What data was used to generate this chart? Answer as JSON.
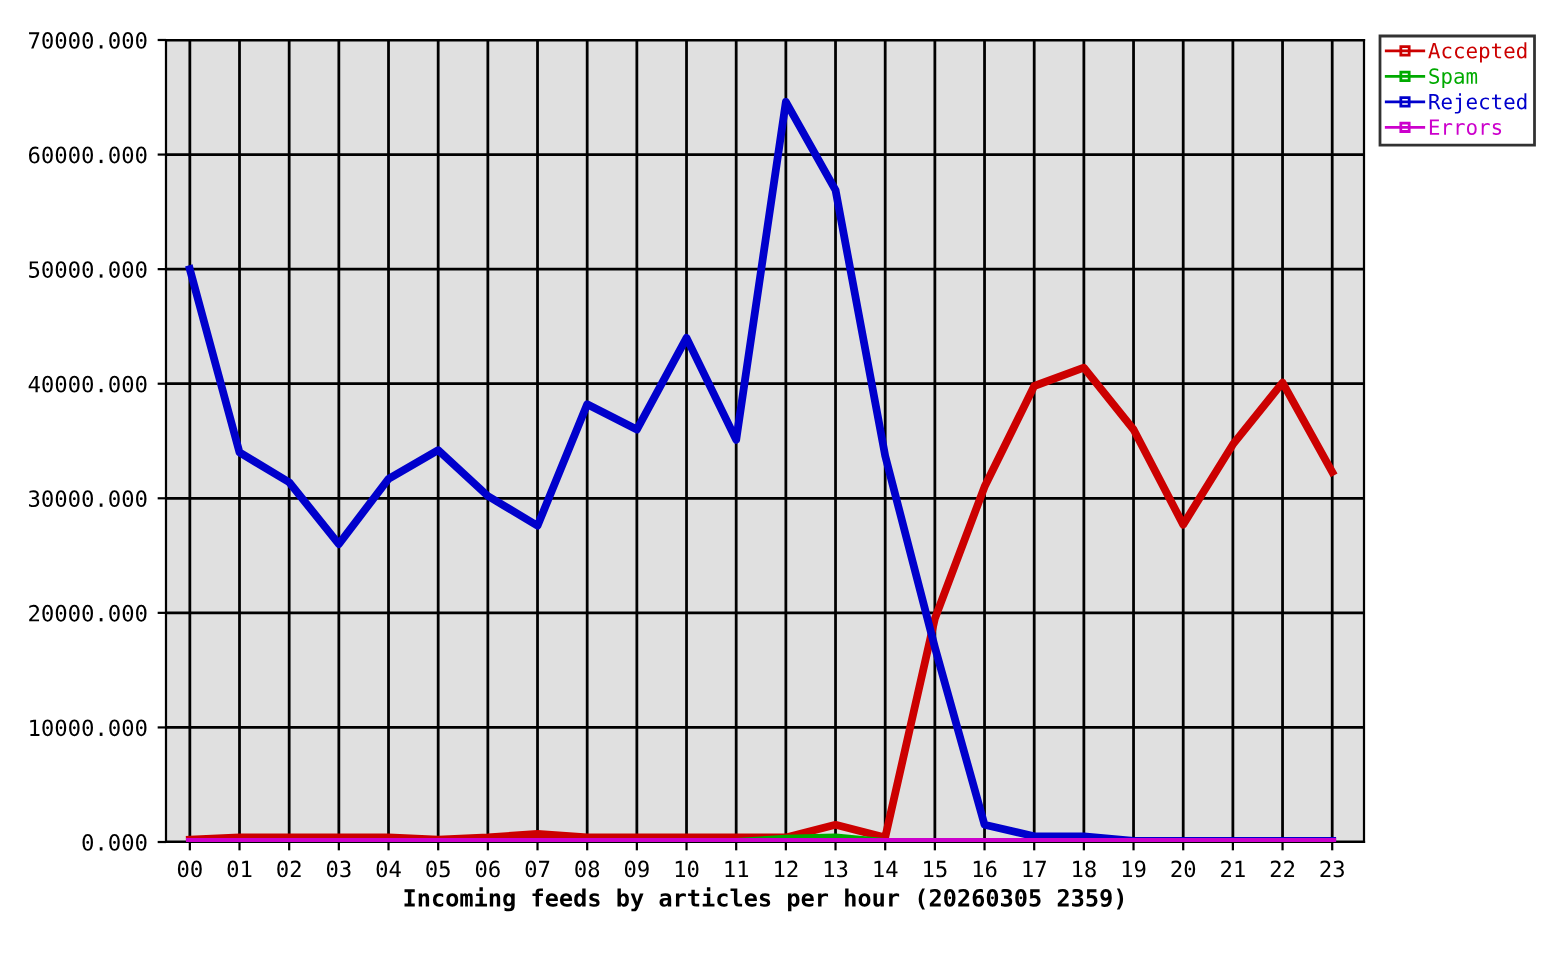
{
  "chart_data": {
    "type": "line",
    "xlabel": "Incoming feeds by articles per hour (20260305 2359)",
    "categories": [
      "00",
      "01",
      "02",
      "03",
      "04",
      "05",
      "06",
      "07",
      "08",
      "09",
      "10",
      "11",
      "12",
      "13",
      "14",
      "15",
      "16",
      "17",
      "18",
      "19",
      "20",
      "21",
      "22",
      "23"
    ],
    "series": [
      {
        "name": "Accepted",
        "color": "#cc0000",
        "values": [
          200,
          400,
          400,
          400,
          400,
          200,
          400,
          700,
          400,
          400,
          400,
          400,
          400,
          1500,
          400,
          19500,
          31000,
          39800,
          41400,
          36000,
          27700,
          34700,
          40100,
          32300
        ]
      },
      {
        "name": "Spam",
        "color": "#00aa00",
        "values": [
          null,
          null,
          null,
          null,
          null,
          null,
          null,
          null,
          null,
          null,
          null,
          0,
          300,
          400,
          0,
          null,
          null,
          null,
          null,
          null,
          null,
          null,
          null,
          null
        ]
      },
      {
        "name": "Rejected",
        "color": "#0000cc",
        "values": [
          50000,
          34000,
          31400,
          26000,
          31700,
          34200,
          30200,
          27600,
          38200,
          36000,
          44000,
          35100,
          64600,
          56900,
          33700,
          17000,
          1500,
          500,
          500,
          100,
          100,
          100,
          100,
          100
        ]
      },
      {
        "name": "Errors",
        "color": "#cc00cc",
        "values": [
          0,
          0,
          0,
          0,
          0,
          0,
          0,
          0,
          0,
          0,
          0,
          0,
          0,
          0,
          0,
          0,
          0,
          0,
          0,
          0,
          0,
          0,
          0,
          0
        ]
      }
    ],
    "ylim": [
      0,
      70000
    ],
    "yticks": [
      {
        "value": 0,
        "label": "0.000"
      },
      {
        "value": 10000,
        "label": "10000.000"
      },
      {
        "value": 20000,
        "label": "20000.000"
      },
      {
        "value": 30000,
        "label": "30000.000"
      },
      {
        "value": 40000,
        "label": "40000.000"
      },
      {
        "value": 50000,
        "label": "50000.000"
      },
      {
        "value": 60000,
        "label": "60000.000"
      },
      {
        "value": 70000,
        "label": "70000.000"
      }
    ],
    "grid": true,
    "legend": "top right",
    "line_style": "solid"
  }
}
